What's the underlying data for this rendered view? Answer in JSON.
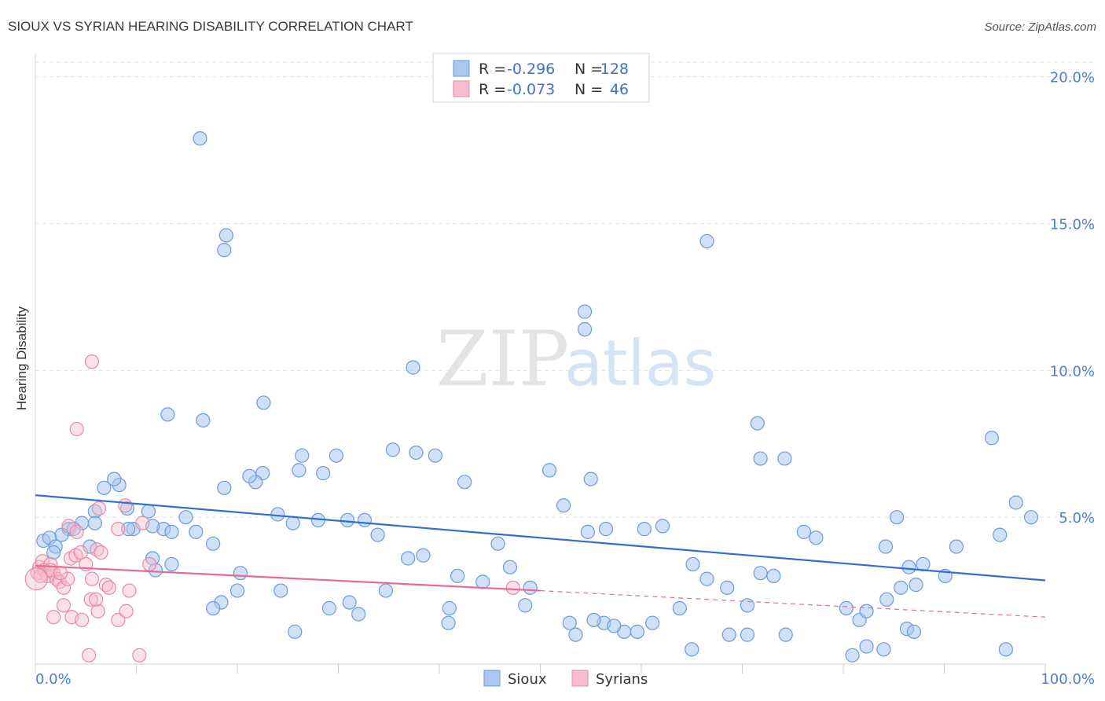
{
  "header": {
    "title": "SIOUX VS SYRIAN HEARING DISABILITY CORRELATION CHART",
    "source": "Source: ZipAtlas.com"
  },
  "watermark": {
    "zip": "ZIP",
    "atlas": "atlas"
  },
  "legend_box": {
    "rows": [
      {
        "r_label": "R =",
        "r_value": "-0.296",
        "n_label": "N =",
        "n_value": "128",
        "color": "#a9c7ef",
        "stroke": "#6c9bdc"
      },
      {
        "r_label": "R =",
        "r_value": "-0.073",
        "n_label": "N =",
        "n_value": "46",
        "color": "#f7bccd",
        "stroke": "#e889a6"
      }
    ]
  },
  "bottom_legend": [
    {
      "label": "Sioux",
      "color": "#a9c7ef",
      "stroke": "#6c9bdc"
    },
    {
      "label": "Syrians",
      "color": "#f7bccd",
      "stroke": "#e889a6"
    }
  ],
  "chart_data": {
    "type": "scatter",
    "title": "SIOUX VS SYRIAN HEARING DISABILITY CORRELATION CHART",
    "xlabel": "",
    "ylabel": "Hearing Disability",
    "xlim": [
      0,
      100
    ],
    "ylim": [
      0,
      20.5
    ],
    "x_tick_labels": [
      "0.0%",
      "100.0%"
    ],
    "y_ticks": [
      5,
      10,
      15,
      20
    ],
    "y_tick_labels": [
      "5.0%",
      "10.0%",
      "15.0%",
      "20.0%"
    ],
    "grid": true,
    "legend_position": "top-center",
    "series": [
      {
        "name": "Sioux",
        "color": "#6c9bdc",
        "fill": "#a9c7ef",
        "trend": {
          "x": [
            0,
            100
          ],
          "y": [
            5.75,
            2.85
          ],
          "color": "#2f6fd0"
        },
        "points": [
          [
            16.3,
            17.9
          ],
          [
            18.9,
            14.6
          ],
          [
            18.7,
            14.1
          ],
          [
            66.5,
            14.4
          ],
          [
            54.4,
            11.4
          ],
          [
            54.4,
            12.0
          ],
          [
            37.4,
            10.1
          ],
          [
            13.1,
            8.5
          ],
          [
            16.6,
            8.3
          ],
          [
            22.6,
            8.9
          ],
          [
            71.5,
            8.2
          ],
          [
            94.7,
            7.7
          ],
          [
            35.4,
            7.3
          ],
          [
            29.8,
            7.1
          ],
          [
            39.6,
            7.1
          ],
          [
            26.4,
            7.1
          ],
          [
            22.5,
            6.5
          ],
          [
            26.1,
            6.6
          ],
          [
            21.8,
            6.2
          ],
          [
            28.5,
            6.5
          ],
          [
            21.2,
            6.4
          ],
          [
            18.7,
            6.0
          ],
          [
            8.3,
            6.1
          ],
          [
            6.8,
            6.0
          ],
          [
            7.8,
            6.3
          ],
          [
            37.7,
            7.2
          ],
          [
            42.5,
            6.2
          ],
          [
            50.9,
            6.6
          ],
          [
            55.0,
            6.3
          ],
          [
            71.8,
            7.0
          ],
          [
            74.2,
            7.0
          ],
          [
            97.1,
            5.5
          ],
          [
            98.6,
            5.0
          ],
          [
            5.9,
            5.2
          ],
          [
            9.1,
            5.3
          ],
          [
            11.2,
            5.2
          ],
          [
            12.7,
            4.6
          ],
          [
            13.5,
            4.5
          ],
          [
            15.9,
            4.5
          ],
          [
            14.9,
            5.0
          ],
          [
            11.6,
            4.7
          ],
          [
            9.7,
            4.6
          ],
          [
            4.6,
            4.8
          ],
          [
            5.9,
            4.8
          ],
          [
            3.3,
            4.6
          ],
          [
            3.8,
            4.6
          ],
          [
            2.6,
            4.4
          ],
          [
            0.8,
            4.2
          ],
          [
            1.4,
            4.3
          ],
          [
            2.0,
            4.0
          ],
          [
            5.4,
            4.0
          ],
          [
            1.8,
            3.8
          ],
          [
            9.2,
            4.6
          ],
          [
            17.6,
            4.1
          ],
          [
            24.0,
            5.1
          ],
          [
            25.5,
            4.8
          ],
          [
            28.0,
            4.9
          ],
          [
            30.9,
            4.9
          ],
          [
            32.6,
            4.9
          ],
          [
            33.9,
            4.4
          ],
          [
            36.9,
            3.6
          ],
          [
            47.0,
            3.3
          ],
          [
            49.0,
            2.6
          ],
          [
            52.3,
            5.4
          ],
          [
            54.7,
            4.5
          ],
          [
            45.8,
            4.1
          ],
          [
            38.4,
            3.7
          ],
          [
            41.8,
            3.0
          ],
          [
            44.3,
            2.8
          ],
          [
            34.7,
            2.5
          ],
          [
            31.1,
            2.1
          ],
          [
            32.0,
            1.7
          ],
          [
            29.1,
            1.9
          ],
          [
            24.3,
            2.5
          ],
          [
            18.4,
            2.1
          ],
          [
            17.6,
            1.9
          ],
          [
            13.5,
            3.4
          ],
          [
            11.9,
            3.2
          ],
          [
            11.6,
            3.6
          ],
          [
            20.3,
            3.1
          ],
          [
            20.0,
            2.5
          ],
          [
            41.0,
            1.9
          ],
          [
            40.9,
            1.4
          ],
          [
            25.7,
            1.1
          ],
          [
            52.9,
            1.4
          ],
          [
            56.3,
            1.4
          ],
          [
            58.3,
            1.1
          ],
          [
            61.1,
            1.4
          ],
          [
            63.8,
            1.9
          ],
          [
            65.1,
            3.4
          ],
          [
            66.5,
            2.9
          ],
          [
            68.5,
            2.6
          ],
          [
            70.5,
            2.0
          ],
          [
            71.8,
            3.1
          ],
          [
            73.1,
            3.0
          ],
          [
            76.1,
            4.5
          ],
          [
            77.3,
            4.3
          ],
          [
            60.3,
            4.6
          ],
          [
            62.1,
            4.7
          ],
          [
            56.5,
            4.6
          ],
          [
            48.5,
            2.0
          ],
          [
            53.5,
            1.0
          ],
          [
            55.3,
            1.5
          ],
          [
            57.3,
            1.3
          ],
          [
            59.6,
            1.1
          ],
          [
            65.0,
            0.5
          ],
          [
            68.7,
            1.0
          ],
          [
            70.5,
            1.0
          ],
          [
            74.3,
            1.0
          ],
          [
            80.3,
            1.9
          ],
          [
            81.6,
            1.5
          ],
          [
            82.3,
            1.8
          ],
          [
            84.3,
            2.2
          ],
          [
            86.3,
            1.2
          ],
          [
            87.2,
            2.7
          ],
          [
            86.5,
            3.3
          ],
          [
            87.0,
            1.1
          ],
          [
            84.2,
            4.0
          ],
          [
            85.3,
            5.0
          ],
          [
            90.1,
            3.0
          ],
          [
            91.2,
            4.0
          ],
          [
            96.1,
            0.5
          ],
          [
            85.7,
            2.6
          ],
          [
            87.9,
            3.4
          ],
          [
            84.0,
            0.5
          ],
          [
            80.9,
            0.3
          ],
          [
            82.3,
            0.6
          ],
          [
            95.5,
            4.4
          ]
        ]
      },
      {
        "name": "Syrians",
        "color": "#e889a6",
        "fill": "#f7bccd",
        "trend": {
          "x": [
            0,
            50
          ],
          "y": [
            3.35,
            2.5
          ],
          "color": "#e86a93",
          "dashed_to": [
            100,
            1.6
          ]
        },
        "points": [
          [
            0.2,
            3.1
          ],
          [
            0.4,
            3.3
          ],
          [
            0.7,
            3.5
          ],
          [
            0.9,
            3.2
          ],
          [
            1.2,
            3.0
          ],
          [
            1.5,
            3.4
          ],
          [
            1.8,
            3.1
          ],
          [
            2.1,
            2.9
          ],
          [
            2.4,
            2.8
          ],
          [
            2.8,
            2.6
          ],
          [
            3.2,
            2.9
          ],
          [
            3.5,
            3.6
          ],
          [
            4.0,
            3.7
          ],
          [
            4.5,
            3.8
          ],
          [
            5.0,
            3.4
          ],
          [
            5.6,
            2.9
          ],
          [
            6.1,
            3.9
          ],
          [
            6.5,
            3.8
          ],
          [
            7.0,
            2.7
          ],
          [
            7.3,
            2.6
          ],
          [
            8.2,
            4.6
          ],
          [
            8.9,
            5.4
          ],
          [
            10.6,
            4.8
          ],
          [
            3.3,
            4.7
          ],
          [
            4.1,
            4.5
          ],
          [
            5.6,
            10.3
          ],
          [
            4.1,
            8.0
          ],
          [
            6.3,
            5.3
          ],
          [
            2.8,
            2.0
          ],
          [
            3.6,
            1.6
          ],
          [
            4.6,
            1.5
          ],
          [
            5.5,
            2.2
          ],
          [
            6.2,
            1.8
          ],
          [
            8.2,
            1.5
          ],
          [
            9.0,
            1.8
          ],
          [
            9.3,
            2.5
          ],
          [
            10.3,
            0.3
          ],
          [
            5.3,
            0.3
          ],
          [
            1.8,
            1.6
          ],
          [
            1.5,
            3.2
          ],
          [
            0.5,
            3.0
          ],
          [
            2.5,
            3.1
          ],
          [
            6.0,
            2.2
          ],
          [
            11.3,
            3.4
          ],
          [
            47.3,
            2.6
          ],
          [
            0.1,
            2.9
          ]
        ]
      }
    ]
  }
}
